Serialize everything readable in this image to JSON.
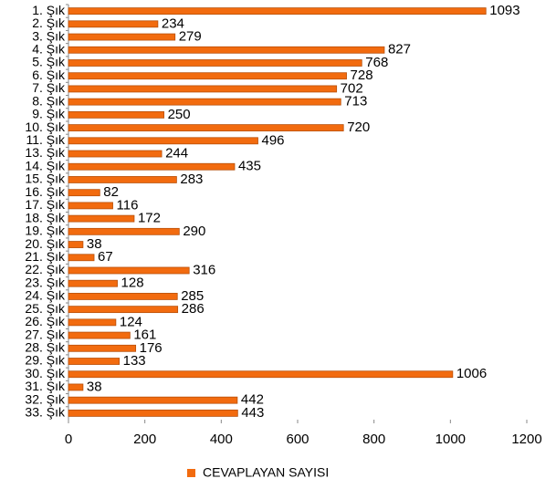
{
  "chart_data": {
    "type": "bar",
    "orientation": "horizontal",
    "categories": [
      "1. Şık",
      "2. Şık",
      "3. Şık",
      "4. Şık",
      "5. Şık",
      "6. Şık",
      "7. Şık",
      "8. Şık",
      "9. Şık",
      "10. Şık",
      "11. Şık",
      "13. Şık",
      "14. Şık",
      "15. Şık",
      "16. Şık",
      "17. Şık",
      "18. Şık",
      "19. Şık",
      "20. Şık",
      "21. Şık",
      "22. Şık",
      "23. Şık",
      "24. Şık",
      "25. Şık",
      "26. Şık",
      "27. Şık",
      "28. Şık",
      "29. Şık",
      "30. Şık",
      "31. Şık",
      "32. Şık",
      "33. Şık"
    ],
    "series": [
      {
        "name": "CEVAPLAYAN SAYISI",
        "color": "#f26b0f",
        "values": [
          1093,
          234,
          279,
          827,
          768,
          728,
          702,
          713,
          250,
          720,
          496,
          244,
          435,
          283,
          82,
          116,
          172,
          290,
          38,
          67,
          316,
          128,
          285,
          286,
          124,
          161,
          176,
          133,
          1006,
          38,
          442,
          443
        ]
      }
    ],
    "xlim": [
      0,
      1200
    ],
    "xticks": [
      0,
      200,
      400,
      600,
      800,
      1000,
      1200
    ],
    "grid": false,
    "legend": "bottom"
  }
}
